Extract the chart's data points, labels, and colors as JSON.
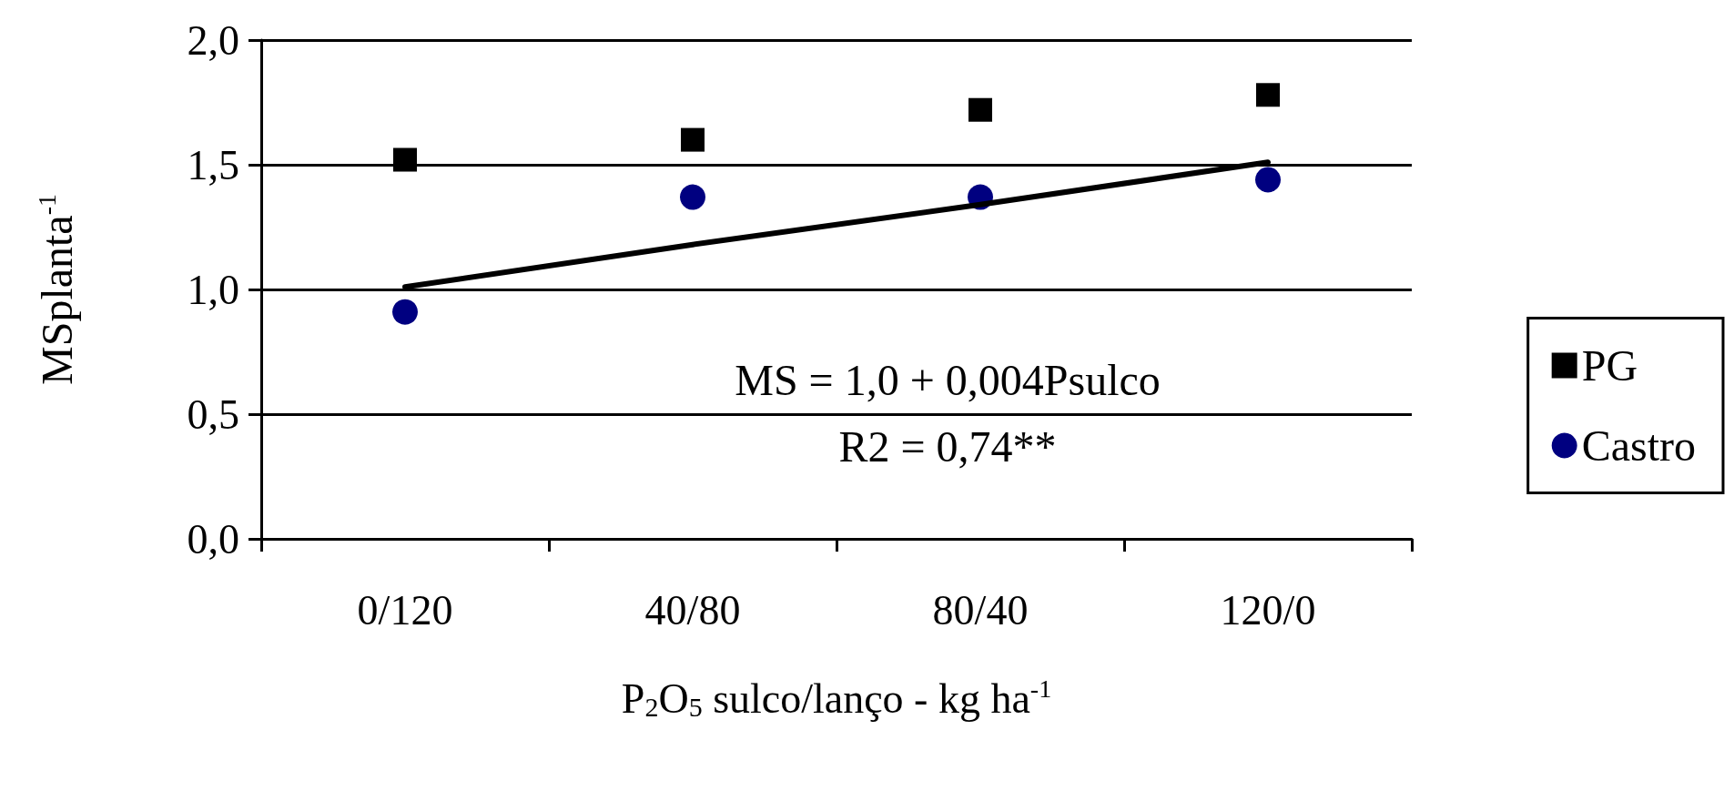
{
  "chart_data": {
    "type": "scatter",
    "xlabel": "P$_{2}$O$_{5}$ sulco/lanço - kg ha$^{-1}$",
    "ylabel": "MSplanta$^{-1}$",
    "categories": [
      "0/120",
      "40/80",
      "80/40",
      "120/0"
    ],
    "series": [
      {
        "name": "PG",
        "marker": "square",
        "color": "#000000",
        "values": [
          1.52,
          1.6,
          1.72,
          1.78
        ]
      },
      {
        "name": "Castro",
        "marker": "circle",
        "color": "#000080",
        "values": [
          0.91,
          1.37,
          1.37,
          1.44
        ]
      },
      {
        "type": "line",
        "marker": "none",
        "color": "#000000",
        "values": [
          1.01,
          1.18,
          1.34,
          1.51
        ]
      }
    ],
    "ylim": [
      0,
      2
    ],
    "yticks": [
      {
        "value": 0,
        "label": "0,0"
      },
      {
        "value": 0.5,
        "label": "0,5"
      },
      {
        "value": 1,
        "label": "1,0"
      },
      {
        "value": 1.5,
        "label": "1,5"
      },
      {
        "value": 2,
        "label": "2,0"
      }
    ],
    "grid": "y",
    "legend": "right",
    "annotations": [
      "MS = 1,0 + 0,004Psulco",
      "R2 = 0,74**"
    ]
  }
}
